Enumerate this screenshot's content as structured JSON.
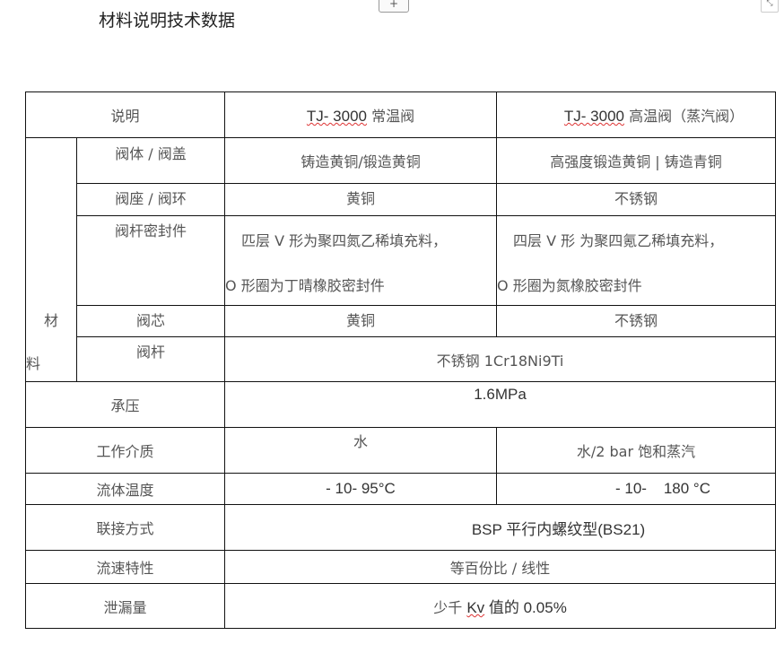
{
  "title": "材料说明技术数据",
  "controls": {
    "add": "+",
    "resize": "⤡"
  },
  "header": {
    "desc": "说明",
    "col1_model": "TJ- 3000",
    "col1_name": "常温阀",
    "col2_model": "TJ- 3000",
    "col2_name": "高温阀（蒸汽阀）"
  },
  "material": {
    "label_1": "材",
    "label_2": "料",
    "rows": [
      {
        "name": "阀体 / 阀盖",
        "v1": "铸造黄铜/锻造黄铜",
        "v2": "高强度锻造黄铜 | 铸造青铜"
      },
      {
        "name": "阀座 / 阀环",
        "v1": "黄铜",
        "v2": "不锈钢"
      },
      {
        "name": "阀杆密封件",
        "v1_a": "匹层 V 形为聚四氮乙稀填充料，",
        "v1_b": "O 形圈为丁晴橡胶密封件",
        "v2_a": "四层 V 形 为聚四氪乙稀填充料，",
        "v2_b": "O 形圈为氮橡胶密封件"
      },
      {
        "name": "阀芯",
        "v1": "黄铜",
        "v2": "不锈钢"
      },
      {
        "name": "阀杆",
        "v": "不锈钢 1Cr18Ni9Ti"
      }
    ]
  },
  "pressure": {
    "name": "承压",
    "value": "1.6MPa"
  },
  "medium": {
    "name": "工作介质",
    "v1": "水",
    "v2": "水/2 bar 饱和蒸汽"
  },
  "temp": {
    "name": "流体温度",
    "v1": "- 10- 95°C",
    "v2": "- 10-    180 °C"
  },
  "connection": {
    "name": "联接方式",
    "value": "BSP 平行内螺纹型(BS21)"
  },
  "flow": {
    "name": "流速特性",
    "value": "等百份比 / 线性"
  },
  "leak": {
    "name": "泄漏量",
    "value_a": "少千 ",
    "value_kv": "Kv",
    "value_b": " 值的 0.05%"
  }
}
